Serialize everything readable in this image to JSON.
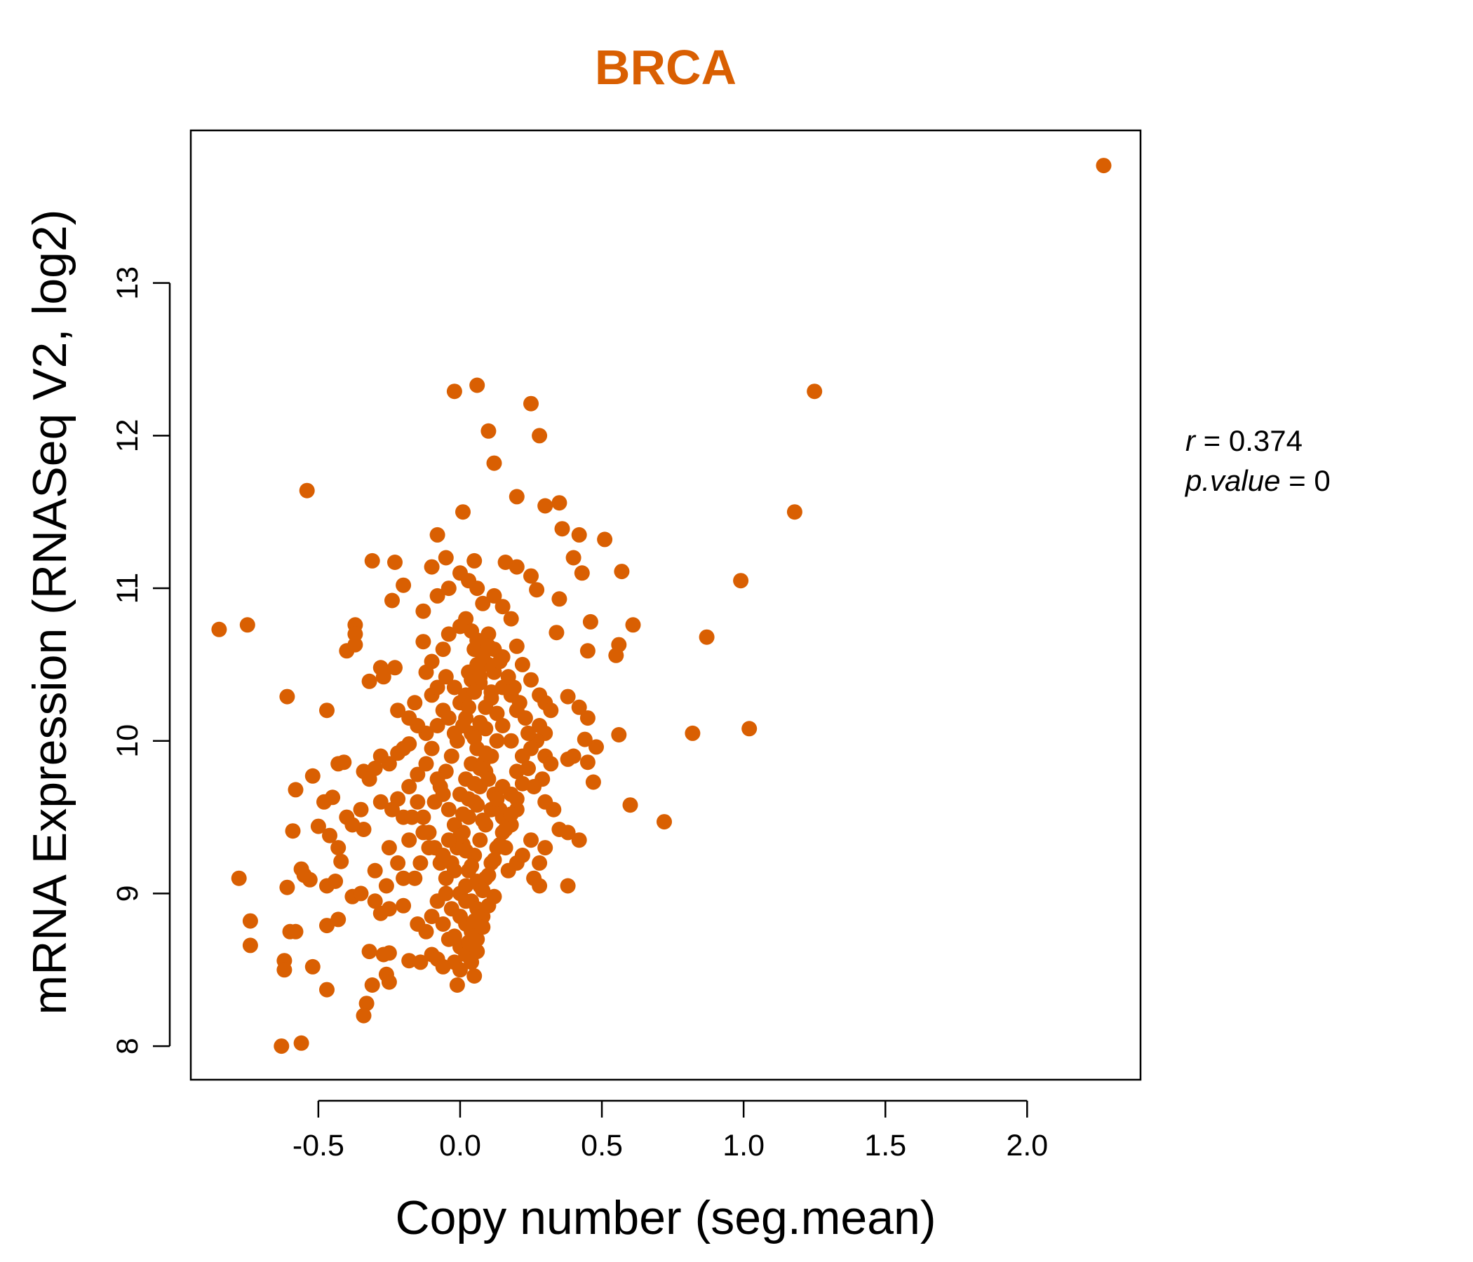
{
  "colors": {
    "accent": "#D95F02",
    "axis": "#000000",
    "background": "#FFFFFF"
  },
  "chart_data": {
    "type": "scatter",
    "title": "BRCA",
    "xlabel": "Copy number (seg.mean)",
    "ylabel": "mRNA Expression (RNASeq V2, log2)",
    "xlim": [
      -0.95,
      2.4
    ],
    "ylim": [
      7.78,
      14.0
    ],
    "x_ticks": [
      -0.5,
      0.0,
      0.5,
      1.0,
      1.5,
      2.0
    ],
    "x_tick_labels": [
      "-0.5",
      "0.0",
      "0.5",
      "1.0",
      "1.5",
      "2.0"
    ],
    "y_ticks": [
      8,
      9,
      10,
      11,
      12,
      13
    ],
    "y_tick_labels": [
      "8",
      "9",
      "10",
      "11",
      "12",
      "13"
    ],
    "grid": false,
    "legend": "none",
    "stats": {
      "r_symbol": "r",
      "r_value": "0.374",
      "p_symbol": "p.value",
      "p_value": "0"
    },
    "points": [
      [
        2.27,
        13.77
      ],
      [
        1.25,
        12.29
      ],
      [
        1.18,
        11.5
      ],
      [
        0.99,
        11.05
      ],
      [
        0.87,
        10.68
      ],
      [
        0.82,
        10.05
      ],
      [
        1.02,
        10.08
      ],
      [
        0.72,
        9.47
      ],
      [
        -0.02,
        12.29
      ],
      [
        0.06,
        12.33
      ],
      [
        0.25,
        12.21
      ],
      [
        0.1,
        12.03
      ],
      [
        0.28,
        12.0
      ],
      [
        0.12,
        11.82
      ],
      [
        -0.54,
        11.64
      ],
      [
        0.2,
        11.6
      ],
      [
        0.35,
        11.56
      ],
      [
        0.3,
        11.54
      ],
      [
        0.01,
        11.5
      ],
      [
        -0.08,
        11.35
      ],
      [
        0.42,
        11.35
      ],
      [
        0.51,
        11.32
      ],
      [
        0.36,
        11.39
      ],
      [
        0.4,
        11.2
      ],
      [
        -0.31,
        11.18
      ],
      [
        -0.23,
        11.17
      ],
      [
        -0.05,
        11.2
      ],
      [
        0.05,
        11.18
      ],
      [
        0.16,
        11.17
      ],
      [
        0.2,
        11.14
      ],
      [
        0.43,
        11.1
      ],
      [
        0.57,
        11.11
      ],
      [
        -0.1,
        11.14
      ],
      [
        0.25,
        11.08
      ],
      [
        -0.2,
        11.02
      ],
      [
        0.27,
        10.99
      ],
      [
        0.35,
        10.93
      ],
      [
        -0.24,
        10.92
      ],
      [
        -0.85,
        10.73
      ],
      [
        -0.75,
        10.76
      ],
      [
        -0.37,
        10.76
      ],
      [
        -0.37,
        10.7
      ],
      [
        -0.4,
        10.59
      ],
      [
        -0.37,
        10.63
      ],
      [
        -0.13,
        10.65
      ],
      [
        0.61,
        10.76
      ],
      [
        0.46,
        10.78
      ],
      [
        0.56,
        10.63
      ],
      [
        0.55,
        10.56
      ],
      [
        0.45,
        10.59
      ],
      [
        0.34,
        10.71
      ],
      [
        -0.28,
        10.48
      ],
      [
        -0.23,
        10.48
      ],
      [
        -0.27,
        10.42
      ],
      [
        -0.32,
        10.39
      ],
      [
        -0.61,
        10.29
      ],
      [
        -0.47,
        10.2
      ],
      [
        0.38,
        10.29
      ],
      [
        0.42,
        10.22
      ],
      [
        0.45,
        10.15
      ],
      [
        0.56,
        10.04
      ],
      [
        0.44,
        10.01
      ],
      [
        0.48,
        9.96
      ],
      [
        0.4,
        9.9
      ],
      [
        0.45,
        9.86
      ],
      [
        0.47,
        9.73
      ],
      [
        0.6,
        9.58
      ],
      [
        0.38,
        9.88
      ],
      [
        -0.52,
        9.77
      ],
      [
        -0.43,
        9.85
      ],
      [
        -0.41,
        9.86
      ],
      [
        -0.58,
        9.68
      ],
      [
        -0.34,
        9.8
      ],
      [
        -0.32,
        9.75
      ],
      [
        -0.48,
        9.6
      ],
      [
        -0.45,
        9.63
      ],
      [
        -0.59,
        9.41
      ],
      [
        -0.5,
        9.44
      ],
      [
        -0.46,
        9.38
      ],
      [
        -0.43,
        9.3
      ],
      [
        -0.34,
        9.42
      ],
      [
        -0.42,
        9.21
      ],
      [
        -0.56,
        9.16
      ],
      [
        -0.55,
        9.12
      ],
      [
        -0.53,
        9.09
      ],
      [
        -0.61,
        9.04
      ],
      [
        -0.78,
        9.1
      ],
      [
        -0.47,
        9.05
      ],
      [
        -0.44,
        9.08
      ],
      [
        -0.74,
        8.82
      ],
      [
        -0.74,
        8.66
      ],
      [
        -0.6,
        8.75
      ],
      [
        -0.58,
        8.75
      ],
      [
        -0.47,
        8.79
      ],
      [
        -0.43,
        8.83
      ],
      [
        -0.62,
        8.56
      ],
      [
        -0.62,
        8.5
      ],
      [
        -0.52,
        8.52
      ],
      [
        -0.47,
        8.37
      ],
      [
        -0.32,
        8.62
      ],
      [
        -0.27,
        8.6
      ],
      [
        -0.25,
        8.61
      ],
      [
        -0.26,
        8.47
      ],
      [
        -0.31,
        8.4
      ],
      [
        -0.25,
        8.42
      ],
      [
        -0.33,
        8.28
      ],
      [
        -0.34,
        8.2
      ],
      [
        -0.63,
        8.0
      ],
      [
        -0.56,
        8.02
      ],
      [
        -0.38,
        8.98
      ],
      [
        -0.35,
        9.0
      ],
      [
        -0.3,
        8.95
      ],
      [
        -0.28,
        8.87
      ],
      [
        -0.25,
        8.9
      ],
      [
        -0.2,
        8.92
      ],
      [
        -0.15,
        8.8
      ],
      [
        -0.12,
        8.75
      ],
      [
        -0.1,
        8.6
      ],
      [
        -0.08,
        8.57
      ],
      [
        -0.06,
        8.52
      ],
      [
        -0.18,
        8.56
      ],
      [
        -0.14,
        8.55
      ],
      [
        -0.2,
        9.1
      ],
      [
        -0.22,
        9.2
      ],
      [
        -0.18,
        9.35
      ],
      [
        -0.25,
        9.3
      ],
      [
        -0.3,
        9.15
      ],
      [
        -0.26,
        9.05
      ],
      [
        -0.2,
        9.5
      ],
      [
        -0.24,
        9.55
      ],
      [
        -0.28,
        9.6
      ],
      [
        -0.22,
        9.62
      ],
      [
        -0.18,
        9.7
      ],
      [
        -0.15,
        9.78
      ],
      [
        -0.25,
        9.85
      ],
      [
        -0.22,
        9.92
      ],
      [
        -0.2,
        9.95
      ],
      [
        -0.18,
        9.98
      ],
      [
        -0.28,
        9.9
      ],
      [
        -0.3,
        9.82
      ],
      [
        -0.35,
        9.55
      ],
      [
        -0.4,
        9.5
      ],
      [
        -0.38,
        9.45
      ],
      [
        -0.12,
        10.05
      ],
      [
        -0.15,
        10.1
      ],
      [
        -0.18,
        10.15
      ],
      [
        -0.22,
        10.2
      ],
      [
        -0.16,
        10.25
      ],
      [
        -0.1,
        10.3
      ],
      [
        -0.08,
        10.35
      ],
      [
        -0.05,
        10.42
      ],
      [
        -0.12,
        10.45
      ],
      [
        -0.1,
        10.52
      ],
      [
        -0.06,
        10.6
      ],
      [
        -0.04,
        10.7
      ],
      [
        0.0,
        10.75
      ],
      [
        0.02,
        10.8
      ],
      [
        0.04,
        10.72
      ],
      [
        0.06,
        10.66
      ],
      [
        0.1,
        10.7
      ],
      [
        0.12,
        10.6
      ],
      [
        0.15,
        10.55
      ],
      [
        0.2,
        10.62
      ],
      [
        0.22,
        10.5
      ],
      [
        0.25,
        10.4
      ],
      [
        0.28,
        10.3
      ],
      [
        0.3,
        10.25
      ],
      [
        0.32,
        10.2
      ],
      [
        0.28,
        10.1
      ],
      [
        0.3,
        10.05
      ],
      [
        0.27,
        10.0
      ],
      [
        0.25,
        9.95
      ],
      [
        0.3,
        9.9
      ],
      [
        0.32,
        9.85
      ],
      [
        0.29,
        9.75
      ],
      [
        0.26,
        9.7
      ],
      [
        0.3,
        9.6
      ],
      [
        0.33,
        9.55
      ],
      [
        0.35,
        9.42
      ],
      [
        0.38,
        9.4
      ],
      [
        0.42,
        9.35
      ],
      [
        0.3,
        9.3
      ],
      [
        0.28,
        9.2
      ],
      [
        0.26,
        9.1
      ],
      [
        0.28,
        9.05
      ],
      [
        0.38,
        9.05
      ],
      [
        0.2,
        9.2
      ],
      [
        0.22,
        9.25
      ],
      [
        0.25,
        9.35
      ],
      [
        0.18,
        9.45
      ],
      [
        0.15,
        9.5
      ],
      [
        0.2,
        9.55
      ],
      [
        0.18,
        9.65
      ],
      [
        0.15,
        9.7
      ],
      [
        0.2,
        9.8
      ],
      [
        0.22,
        9.9
      ],
      [
        0.18,
        10.0
      ],
      [
        0.15,
        10.1
      ],
      [
        0.2,
        10.2
      ],
      [
        0.18,
        10.3
      ],
      [
        0.15,
        10.35
      ],
      [
        0.12,
        10.45
      ],
      [
        0.1,
        10.5
      ],
      [
        0.08,
        10.55
      ],
      [
        0.05,
        10.6
      ],
      [
        0.08,
        10.9
      ],
      [
        0.06,
        11.0
      ],
      [
        0.03,
        11.05
      ],
      [
        0.0,
        11.1
      ],
      [
        0.12,
        10.95
      ],
      [
        0.15,
        10.88
      ],
      [
        0.18,
        10.8
      ],
      [
        -0.08,
        10.95
      ],
      [
        -0.04,
        11.0
      ],
      [
        -0.13,
        10.85
      ],
      [
        0.0,
        9.0
      ],
      [
        0.02,
        9.05
      ],
      [
        0.04,
        8.95
      ],
      [
        0.06,
        8.9
      ],
      [
        0.08,
        8.85
      ],
      [
        0.1,
        8.92
      ],
      [
        0.12,
        8.98
      ],
      [
        0.02,
        8.8
      ],
      [
        0.04,
        8.75
      ],
      [
        0.06,
        8.7
      ],
      [
        0.0,
        8.65
      ],
      [
        0.02,
        8.6
      ],
      [
        -0.02,
        8.55
      ],
      [
        0.0,
        8.5
      ],
      [
        0.04,
        8.55
      ],
      [
        0.06,
        8.62
      ],
      [
        -0.04,
        8.7
      ],
      [
        -0.06,
        8.8
      ],
      [
        -0.03,
        8.9
      ],
      [
        -0.01,
        8.4
      ],
      [
        0.05,
        8.46
      ],
      [
        -0.05,
        9.1
      ],
      [
        -0.03,
        9.2
      ],
      [
        -0.01,
        9.3
      ],
      [
        0.01,
        9.4
      ],
      [
        0.03,
        9.5
      ],
      [
        0.05,
        9.6
      ],
      [
        0.07,
        9.7
      ],
      [
        0.09,
        9.8
      ],
      [
        0.11,
        9.9
      ],
      [
        0.13,
        10.0
      ],
      [
        0.15,
        9.4
      ],
      [
        0.13,
        9.3
      ],
      [
        0.11,
        9.2
      ],
      [
        0.09,
        9.1
      ],
      [
        0.07,
        9.05
      ],
      [
        0.17,
        9.15
      ],
      [
        0.16,
        9.3
      ],
      [
        0.14,
        9.55
      ],
      [
        0.12,
        9.65
      ],
      [
        0.1,
        9.75
      ],
      [
        0.08,
        9.85
      ],
      [
        0.06,
        9.95
      ],
      [
        0.04,
        10.05
      ],
      [
        0.02,
        10.15
      ],
      [
        0.0,
        10.25
      ],
      [
        -0.02,
        10.35
      ],
      [
        0.03,
        10.45
      ],
      [
        0.07,
        10.38
      ],
      [
        0.11,
        10.28
      ],
      [
        0.13,
        10.18
      ],
      [
        0.09,
        10.08
      ],
      [
        -0.07,
        9.2
      ],
      [
        -0.09,
        9.3
      ],
      [
        -0.11,
        9.4
      ],
      [
        -0.13,
        9.5
      ],
      [
        -0.09,
        9.6
      ],
      [
        -0.07,
        9.7
      ],
      [
        -0.05,
        9.8
      ],
      [
        -0.03,
        9.9
      ],
      [
        -0.01,
        10.0
      ],
      [
        0.01,
        10.1
      ],
      [
        -0.15,
        9.6
      ],
      [
        -0.17,
        9.5
      ],
      [
        -0.13,
        9.4
      ],
      [
        -0.11,
        9.3
      ],
      [
        -0.14,
        9.2
      ],
      [
        -0.16,
        9.1
      ],
      [
        -0.05,
        9.0
      ],
      [
        -0.08,
        8.95
      ],
      [
        -0.1,
        8.85
      ],
      [
        0.03,
        9.15
      ],
      [
        0.05,
        9.25
      ],
      [
        0.07,
        9.35
      ],
      [
        0.09,
        9.45
      ],
      [
        0.11,
        9.55
      ],
      [
        0.13,
        9.62
      ],
      [
        0.01,
        9.32
      ],
      [
        -0.02,
        9.45
      ],
      [
        -0.04,
        9.55
      ],
      [
        0.0,
        9.65
      ],
      [
        0.02,
        9.75
      ],
      [
        0.04,
        9.85
      ],
      [
        0.06,
        9.58
      ],
      [
        0.08,
        9.48
      ],
      [
        0.0,
        9.38
      ],
      [
        0.02,
        9.28
      ],
      [
        0.04,
        9.18
      ],
      [
        0.06,
        9.08
      ],
      [
        0.08,
        9.02
      ],
      [
        0.1,
        9.12
      ],
      [
        0.12,
        9.22
      ],
      [
        0.14,
        9.32
      ],
      [
        0.16,
        9.42
      ],
      [
        0.18,
        9.52
      ],
      [
        0.2,
        9.62
      ],
      [
        0.22,
        9.72
      ],
      [
        0.24,
        9.82
      ],
      [
        0.24,
        10.05
      ],
      [
        0.23,
        10.15
      ],
      [
        0.21,
        10.25
      ],
      [
        0.19,
        10.35
      ],
      [
        0.17,
        10.42
      ],
      [
        0.14,
        10.52
      ],
      [
        0.1,
        10.62
      ],
      [
        0.06,
        10.5
      ],
      [
        0.04,
        10.4
      ],
      [
        0.02,
        10.3
      ],
      [
        -0.06,
        10.2
      ],
      [
        -0.08,
        10.1
      ],
      [
        -0.04,
        10.15
      ],
      [
        -0.02,
        10.05
      ],
      [
        -0.1,
        9.95
      ],
      [
        -0.12,
        9.85
      ],
      [
        -0.08,
        9.75
      ],
      [
        -0.06,
        9.65
      ],
      [
        -0.04,
        9.35
      ],
      [
        -0.06,
        9.25
      ],
      [
        -0.02,
        9.15
      ],
      [
        0.0,
        8.85
      ],
      [
        0.02,
        8.95
      ],
      [
        0.05,
        8.82
      ],
      [
        0.08,
        8.78
      ],
      [
        0.03,
        8.68
      ],
      [
        -0.02,
        8.72
      ],
      [
        0.01,
        9.52
      ],
      [
        0.03,
        9.62
      ],
      [
        0.05,
        9.72
      ],
      [
        0.07,
        9.82
      ],
      [
        0.09,
        9.92
      ],
      [
        0.05,
        10.02
      ],
      [
        0.07,
        10.12
      ],
      [
        0.09,
        10.22
      ],
      [
        0.11,
        10.32
      ],
      [
        0.07,
        10.42
      ],
      [
        0.05,
        10.32
      ],
      [
        0.03,
        10.22
      ]
    ]
  }
}
